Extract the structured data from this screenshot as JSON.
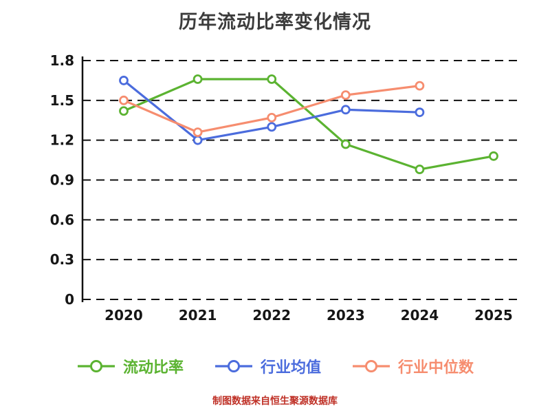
{
  "title": "历年流动比率变化情况",
  "footer": "制图数据来自恒生聚源数据库",
  "chart_data": {
    "type": "line",
    "title": "历年流动比率变化情况",
    "categories": [
      "2020",
      "2021",
      "2022",
      "2023",
      "2024",
      "2025"
    ],
    "series": [
      {
        "name": "流动比率",
        "color": "#5bb331",
        "values": [
          1.42,
          1.66,
          1.66,
          1.17,
          0.98,
          1.08
        ]
      },
      {
        "name": "行业均值",
        "color": "#4b6cdd",
        "values": [
          1.65,
          1.2,
          1.3,
          1.43,
          1.41,
          null
        ]
      },
      {
        "name": "行业中位数",
        "color": "#f68d6f",
        "values": [
          1.5,
          1.26,
          1.37,
          1.54,
          1.61,
          null
        ]
      }
    ],
    "xlabel": "",
    "ylabel": "",
    "ylim": [
      0,
      1.8
    ],
    "yticks": [
      "0",
      "0.3",
      "0.6",
      "0.9",
      "1.2",
      "1.5",
      "1.8"
    ],
    "grid": "dashed-horizontal",
    "legend_position": "bottom",
    "marker": "open-circle",
    "source_note": "制图数据来自恒生聚源数据库"
  }
}
